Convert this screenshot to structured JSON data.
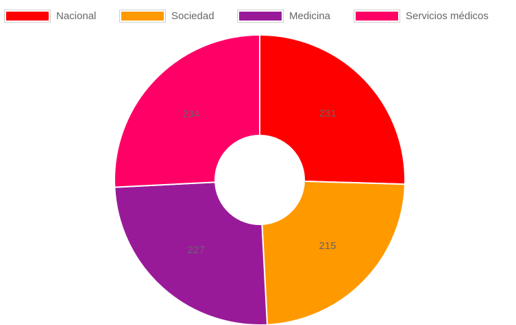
{
  "chart_data": {
    "type": "doughnut",
    "categories": [
      "Nacional",
      "Sociedad",
      "Medicina",
      "Servicios médicos"
    ],
    "values": [
      231,
      215,
      227,
      234
    ],
    "colors": [
      "#ff0000",
      "#ff9900",
      "#991a99",
      "#ff0066"
    ],
    "legend": "top"
  }
}
